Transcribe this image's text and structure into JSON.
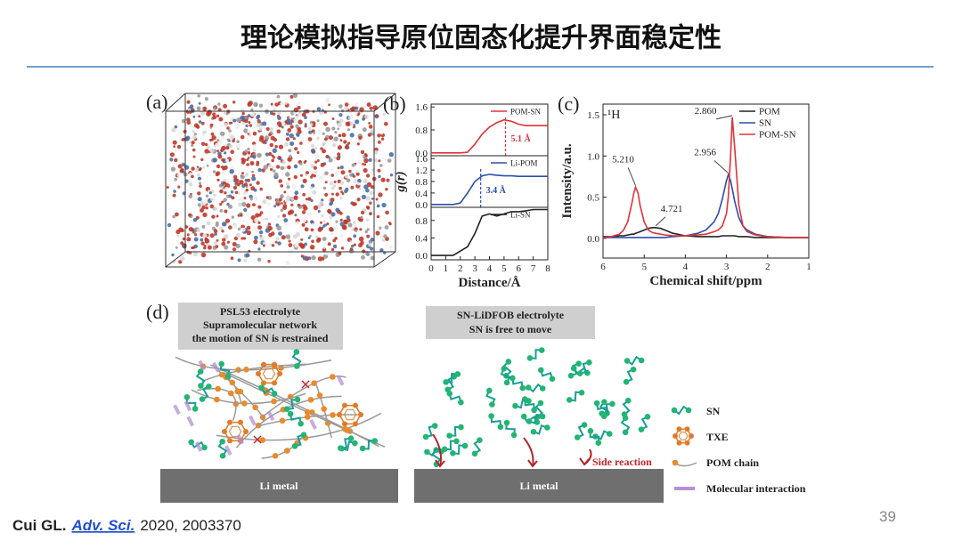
{
  "title": "理论模拟指导原位固态化提升界面稳定性",
  "figure": {
    "panel_labels": [
      "(a)",
      "(b)",
      "(c)",
      "(d)"
    ],
    "d": {
      "left_box": [
        "PSL53 electrolyte",
        "Supramolecular network",
        "the motion of SN is restrained"
      ],
      "right_box": [
        "SN-LiDFOB electrolyte",
        "SN is free to move"
      ],
      "li_metal_left": "Li metal",
      "li_metal_right": "Li metal",
      "side_reaction": "Side reaction",
      "legend": [
        "SN",
        "TXE",
        "POM chain",
        "Molecular interaction"
      ]
    }
  },
  "chart_data": [
    {
      "type": "line",
      "x": [
        0,
        0.5,
        1,
        1.5,
        2,
        2.5,
        3,
        3.5,
        4,
        4.5,
        5,
        5.5,
        6,
        6.5,
        7,
        7.5,
        8
      ],
      "xlim": [
        0,
        8
      ],
      "ylim": [
        -0.1,
        1.7
      ],
      "yticks": [
        {
          "value": 0,
          "label": "0.0"
        },
        0.8,
        1.6
      ],
      "legend": "upper right",
      "series": [
        {
          "name": "POM-SN",
          "color": "#e0333a",
          "values": [
            0,
            0,
            0,
            0,
            0,
            0.02,
            0.3,
            0.65,
            0.9,
            1.05,
            1.15,
            1.1,
            1.0,
            0.95,
            0.95,
            0.95,
            0.95
          ]
        }
      ],
      "annotations": [
        {
          "text": "5.1 Å",
          "x": 5.1
        }
      ]
    },
    {
      "type": "line",
      "x": [
        0,
        0.5,
        1,
        1.5,
        2,
        2.5,
        3,
        3.5,
        4,
        4.5,
        5,
        5.5,
        6,
        6.5,
        7,
        7.5,
        8
      ],
      "xlim": [
        0,
        8
      ],
      "ylim": [
        -0.1,
        1.7
      ],
      "yticks": [
        {
          "value": 0,
          "label": "0.0"
        },
        0.4,
        0.8,
        1.2,
        1.6
      ],
      "legend": "upper right",
      "y_label": "g(r)",
      "series": [
        {
          "name": "Li-POM",
          "color": "#2b4fa8",
          "values": [
            0,
            0,
            0,
            0,
            0.05,
            0.4,
            0.8,
            1.0,
            1.05,
            1.02,
            1.0,
            1.0,
            0.98,
            0.98,
            0.98,
            0.98,
            0.98
          ]
        }
      ],
      "annotations": [
        {
          "text": "3.4 Å",
          "x": 3.4
        }
      ]
    },
    {
      "type": "line",
      "x": [
        0,
        0.5,
        1,
        1.5,
        2,
        2.5,
        3,
        3.5,
        4,
        4.5,
        5,
        5.5,
        6,
        6.5,
        7,
        7.5,
        8
      ],
      "xlim": [
        0,
        8
      ],
      "ylim": [
        -0.1,
        1.1
      ],
      "yticks": [
        {
          "value": 0,
          "label": "0.0"
        },
        0.4,
        0.8
      ],
      "xticks": [
        0,
        1,
        2,
        3,
        4,
        5,
        6,
        7,
        8
      ],
      "legend": "upper right",
      "x_label": "Distance/Å",
      "series": [
        {
          "name": "Li-SN",
          "color": "#222222",
          "values": [
            0,
            0,
            0,
            0,
            0.1,
            0.2,
            0.5,
            0.9,
            0.95,
            0.9,
            0.95,
            1.0,
            1.0,
            1.02,
            1.05,
            1.05,
            1.05
          ]
        }
      ]
    },
    {
      "type": "line",
      "nucleus_label": "¹H",
      "x": [
        6,
        5.8,
        5.6,
        5.5,
        5.4,
        5.3,
        5.25,
        5.21,
        5.15,
        5.1,
        5.0,
        4.9,
        4.8,
        4.72,
        4.6,
        4.5,
        4.3,
        4.0,
        3.7,
        3.5,
        3.3,
        3.2,
        3.1,
        3.0,
        2.956,
        2.9,
        2.86,
        2.8,
        2.7,
        2.6,
        2.5,
        2.3,
        2.0,
        1.5,
        1.0
      ],
      "xlim": [
        6,
        1
      ],
      "xticks": [
        6,
        5,
        4,
        3,
        2,
        1
      ],
      "ylim": [
        -0.24,
        1.63
      ],
      "yticks": [
        {
          "value": 0,
          "label": "0.0"
        },
        0.5,
        {
          "value": 1,
          "label": "1.0"
        },
        1.5
      ],
      "x_label": "Chemical shift/ppm",
      "y_label": "Intensity/a.u.",
      "legend": "upper right",
      "series": [
        {
          "name": "POM",
          "color": "#222222",
          "values": [
            0.02,
            0.02,
            0.03,
            0.03,
            0.04,
            0.05,
            0.05,
            0.06,
            0.07,
            0.08,
            0.1,
            0.12,
            0.13,
            0.13,
            0.12,
            0.1,
            0.06,
            0.03,
            0.02,
            0.02,
            0.02,
            0.02,
            0.03,
            0.03,
            0.03,
            0.03,
            0.03,
            0.03,
            0.02,
            0.02,
            0.02,
            0.01,
            0.01,
            0.01,
            0.01
          ]
        },
        {
          "name": "SN",
          "color": "#2b4fa8",
          "values": [
            0.01,
            0.01,
            0.01,
            0.01,
            0.01,
            0.01,
            0.01,
            0.01,
            0.01,
            0.01,
            0.01,
            0.01,
            0.01,
            0.01,
            0.01,
            0.01,
            0.02,
            0.03,
            0.06,
            0.1,
            0.2,
            0.3,
            0.48,
            0.7,
            0.77,
            0.7,
            0.6,
            0.45,
            0.25,
            0.15,
            0.1,
            0.05,
            0.02,
            0.01,
            0.01
          ]
        },
        {
          "name": "POM-SN",
          "color": "#e0333a",
          "values": [
            0.01,
            0.02,
            0.05,
            0.1,
            0.2,
            0.42,
            0.55,
            0.62,
            0.55,
            0.4,
            0.2,
            0.1,
            0.07,
            0.06,
            0.05,
            0.04,
            0.03,
            0.03,
            0.04,
            0.05,
            0.08,
            0.1,
            0.15,
            0.3,
            0.5,
            1.0,
            1.47,
            1.1,
            0.4,
            0.15,
            0.08,
            0.04,
            0.02,
            0.01,
            0.01
          ]
        }
      ],
      "annotations": [
        {
          "text": "5.210",
          "x": 5.21,
          "y": 0.62
        },
        {
          "text": "4.721",
          "x": 4.72,
          "y": 0.13
        },
        {
          "text": "2.956",
          "x": 2.956,
          "y": 0.77
        },
        {
          "text": "2.860",
          "x": 2.86,
          "y": 1.47
        }
      ]
    }
  ],
  "citation": {
    "author": "Cui GL.",
    "journal": "Adv. Sci.",
    "details": "2020, 2003370"
  },
  "page_number": "39"
}
